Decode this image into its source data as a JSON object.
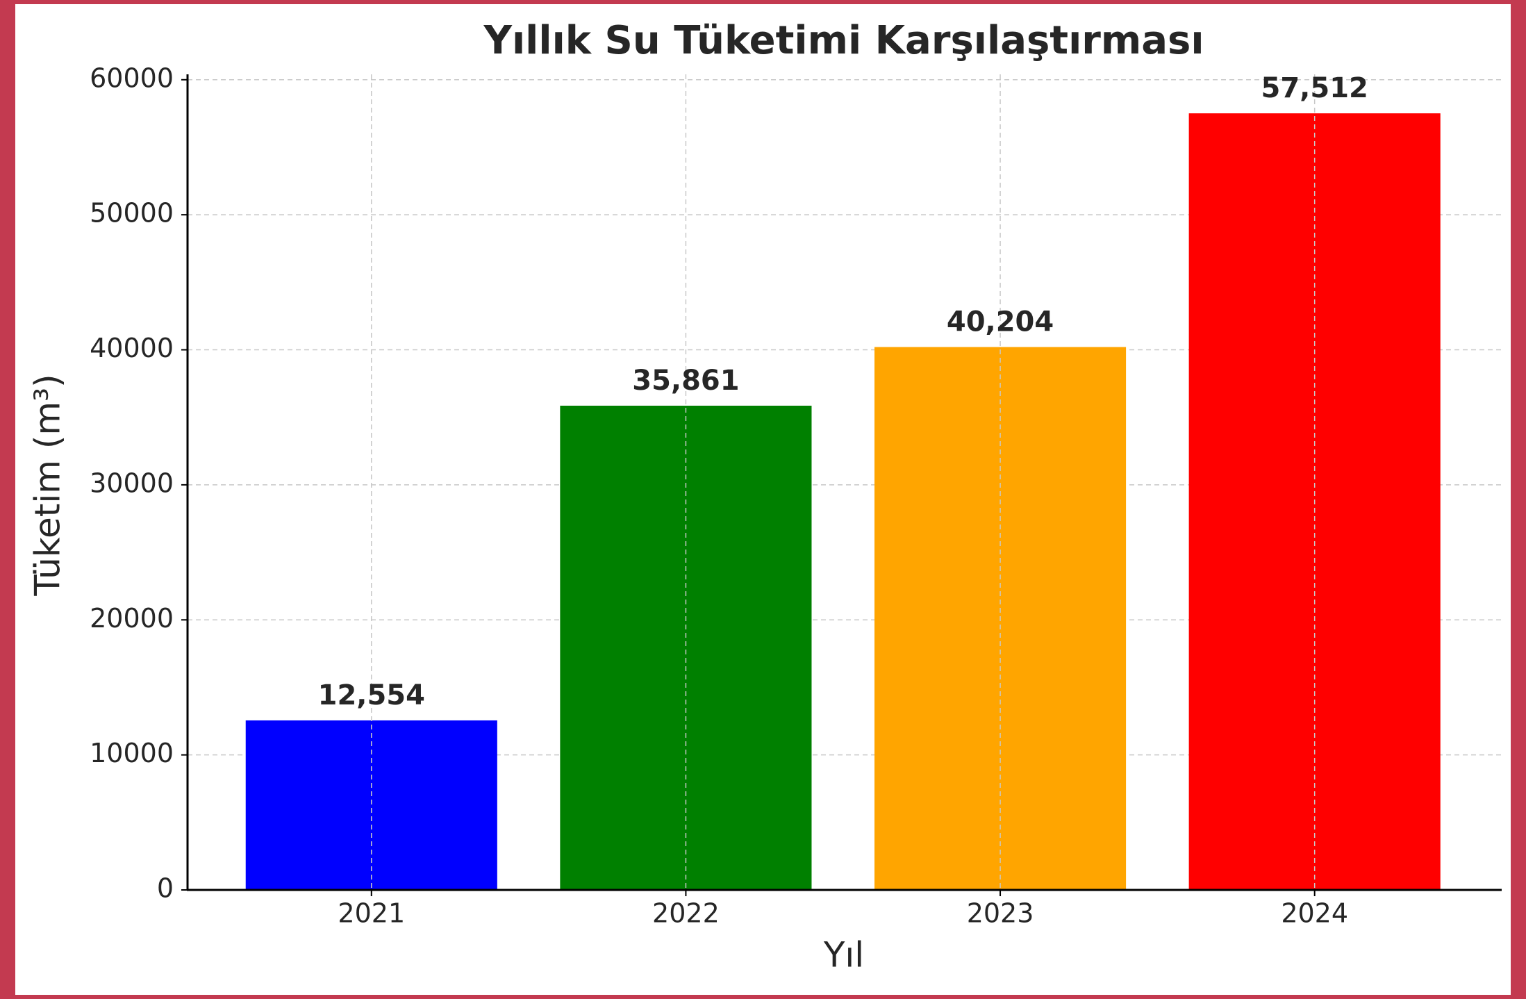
{
  "chart_data": {
    "type": "bar",
    "title": "Yıllık Su Tüketimi Karşılaştırması",
    "x_label": "Yıl",
    "y_label": "Tüketim (m³)",
    "categories": [
      "2021",
      "2022",
      "2023",
      "2024"
    ],
    "values": [
      12554,
      35861,
      40204,
      57512
    ],
    "value_labels": [
      "12,554",
      "35,861",
      "40,204",
      "57,512"
    ],
    "colors": [
      "#0000ff",
      "#008000",
      "#ffa500",
      "#ff0000"
    ],
    "ylim": [
      0,
      60400
    ],
    "yticks": [
      0,
      10000,
      20000,
      30000,
      40000,
      50000,
      60000
    ],
    "grid": true
  }
}
